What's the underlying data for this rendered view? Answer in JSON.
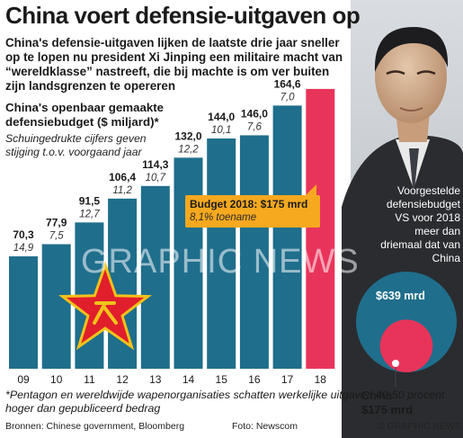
{
  "header": {
    "title": "China voert defensie-uitgaven op",
    "intro": "China's defensie-uitgaven lijken de laatste drie jaar sneller op te lopen nu president Xi Jinping een militaire macht van “wereldklasse” nastreeft, die bij machte is om ver buiten zijn landsgrenzen te opereren"
  },
  "chart_data": {
    "type": "bar",
    "title": "China's openbaar gemaakte defensiebudget ($ miljard)*",
    "note": "Schuingedrukte cijfers geven stijging t.o.v. voorgaand jaar",
    "categories": [
      "09",
      "10",
      "11",
      "12",
      "13",
      "14",
      "15",
      "16",
      "17",
      "18"
    ],
    "values": [
      70.3,
      77.9,
      91.5,
      106.4,
      114.3,
      132.0,
      144.0,
      146.0,
      164.6,
      175.0
    ],
    "value_labels": [
      "70,3",
      "77,9",
      "91,5",
      "106,4",
      "114,3",
      "132,0",
      "144,0",
      "146,0",
      "164,6",
      ""
    ],
    "growth_labels": [
      "14,9",
      "7,5",
      "12,7",
      "11,2",
      "10,7",
      "12,2",
      "10,1",
      "7,6",
      "7,0",
      ""
    ],
    "ylim": [
      0,
      180
    ],
    "grid": false,
    "colors": {
      "bar": "#1f6e8c",
      "highlight": "#e8345a"
    },
    "callout": {
      "title": "Budget 2018: $175 mrd",
      "sub": "8,1% toename"
    }
  },
  "comparison": {
    "text": "Voorgestelde defensiebudget VS voor 2018 meer dan driemaal dat van China",
    "us_value": "$639 mrd",
    "china_value": "$175 mrd",
    "china_label": "China",
    "us_amount": 639,
    "china_amount": 175,
    "colors": {
      "us": "#1f6e8c",
      "china": "#e8345a"
    }
  },
  "footer": {
    "footnote": "*Pentagon en wereldwijde wapenorganisaties schatten werkelijke uitgaven 40-50 procent hoger dan gepubliceerd bedrag",
    "sources": "Bronnen: Chinese government, Bloomberg",
    "photo_credit": "Foto: Newscom",
    "credit": "© GRAPHIC NEWS",
    "watermark": "GRAPHIC NEWS"
  }
}
